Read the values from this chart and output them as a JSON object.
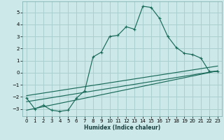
{
  "xlabel": "Humidex (Indice chaleur)",
  "background_color": "#cce8e8",
  "grid_color": "#aacfcf",
  "line_color": "#1a6b5a",
  "xlim": [
    -0.5,
    23.5
  ],
  "ylim": [
    -3.6,
    5.9
  ],
  "xticks": [
    0,
    1,
    2,
    3,
    4,
    5,
    6,
    7,
    8,
    9,
    10,
    11,
    12,
    13,
    14,
    15,
    16,
    17,
    18,
    19,
    20,
    21,
    22,
    23
  ],
  "yticks": [
    -3,
    -2,
    -1,
    0,
    1,
    2,
    3,
    4,
    5
  ],
  "curve1_x": [
    0,
    1,
    2,
    3,
    4,
    5,
    6,
    7,
    8,
    9,
    10,
    11,
    12,
    13,
    14,
    15,
    16,
    17,
    18,
    19,
    20,
    21,
    22,
    23
  ],
  "curve1_y": [
    -2.1,
    -3.0,
    -2.7,
    -3.1,
    -3.2,
    -3.1,
    -2.1,
    -1.5,
    1.3,
    1.7,
    3.0,
    3.1,
    3.8,
    3.6,
    5.5,
    5.4,
    4.5,
    3.0,
    2.1,
    1.6,
    1.5,
    1.2,
    0.1,
    0.1
  ],
  "line1_x": [
    0,
    23
  ],
  "line1_y": [
    -3.1,
    0.15
  ],
  "line2_x": [
    0,
    23
  ],
  "line2_y": [
    -2.4,
    0.15
  ],
  "line3_x": [
    0,
    23
  ],
  "line3_y": [
    -1.9,
    0.55
  ]
}
